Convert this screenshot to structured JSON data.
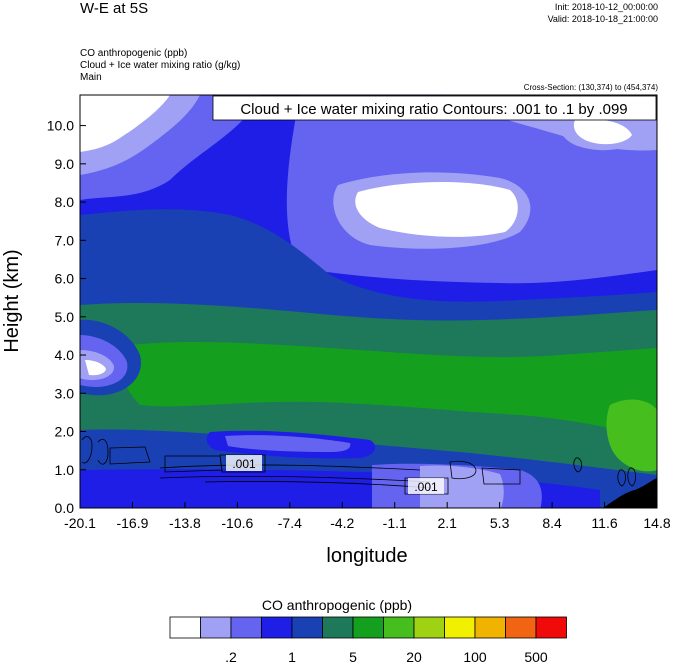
{
  "header": {
    "title": "W-E at 5S",
    "init": "Init: 2018-10-12_00:00:00",
    "valid": "Valid: 2018-10-18_21:00:00",
    "field1": "CO anthropogenic   (ppb)",
    "field2": "Cloud + Ice water mixing ratio   (g/kg)",
    "field3": "Main",
    "cross_section": "Cross-Section: (130,374) to (454,374)"
  },
  "chart_data": {
    "type": "heatmap",
    "title": "W-E at 5S",
    "contour_label": "Cloud + Ice water mixing ratio Contours: .001 to .1 by .099",
    "xlabel": "longitude",
    "ylabel": "Height (km)",
    "xlim": [
      -20.1,
      14.8
    ],
    "ylim": [
      0.0,
      10.8
    ],
    "x_ticks": [
      "-20.1",
      "-16.9",
      "-13.8",
      "-10.6",
      "-7.4",
      "-4.2",
      "-1.1",
      "2.1",
      "5.3",
      "8.4",
      "11.6",
      "14.8"
    ],
    "y_ticks": [
      "0.0",
      "1.0",
      "2.0",
      "3.0",
      "4.0",
      "5.0",
      "6.0",
      "7.0",
      "8.0",
      "9.0",
      "10.0"
    ],
    "contour_values": [
      ".001",
      ".001"
    ],
    "colorbar": {
      "title": "CO anthropogenic  (ppb)",
      "colors": [
        "#ffffff",
        "#a0a0f5",
        "#6464f0",
        "#1e1ee6",
        "#1941b4",
        "#1e785a",
        "#14a01e",
        "#46be1e",
        "#a0d214",
        "#f0f000",
        "#f0b400",
        "#f06414",
        "#f00a0a"
      ],
      "labels": [
        ".2",
        "1",
        "5",
        "20",
        "100",
        "500"
      ]
    }
  }
}
